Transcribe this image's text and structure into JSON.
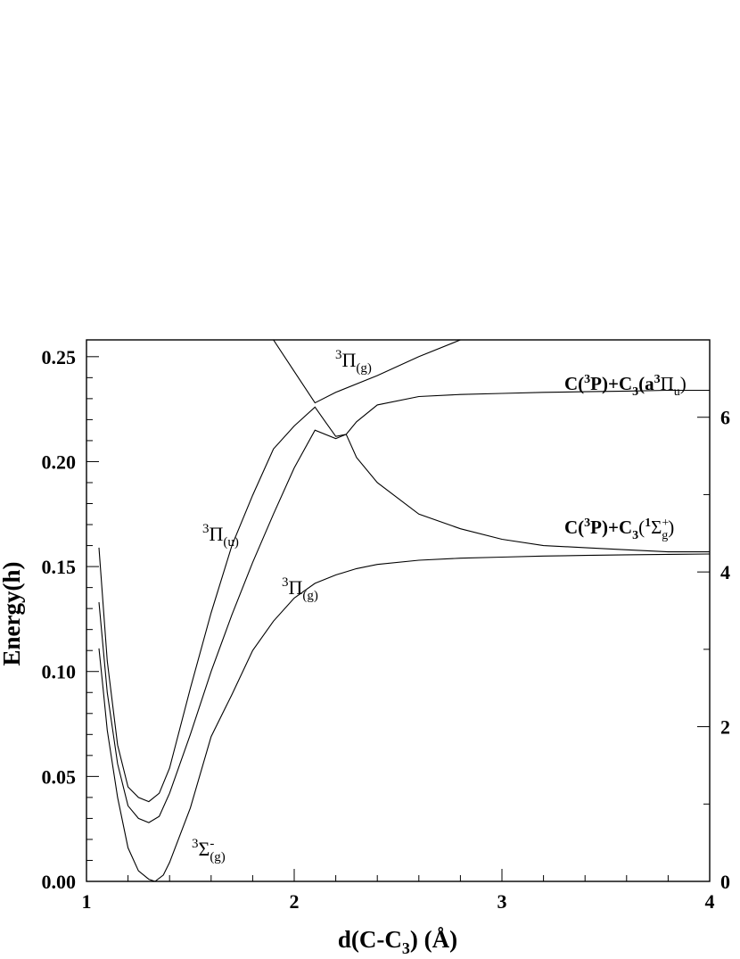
{
  "chart_data": {
    "type": "line",
    "xlabel_main": "d(C-C",
    "xlabel_sub": "3",
    "xlabel_unit": ") (Å)",
    "ylabel": "Energy(h)",
    "xlim": [
      1,
      4
    ],
    "ylim": [
      0,
      0.258
    ],
    "right_ylim": [
      0,
      7.0
    ],
    "x_ticks": [
      "1",
      "2",
      "3",
      "4"
    ],
    "y_ticks": [
      "0.00",
      "0.05",
      "0.10",
      "0.15",
      "0.20",
      "0.25"
    ],
    "right_ticks": [
      "0",
      "2",
      "4",
      "6"
    ],
    "x_tick_values": [
      1,
      2,
      3,
      4
    ],
    "y_tick_values": [
      0,
      0.05,
      0.1,
      0.15,
      0.2,
      0.25
    ],
    "right_tick_values": [
      0,
      2,
      4,
      6
    ],
    "grid": false,
    "series": [
      {
        "x": [
          1.06,
          1.08,
          1.1,
          1.15,
          1.2,
          1.25,
          1.3,
          1.33,
          1.37,
          1.4,
          1.5,
          1.6,
          1.7,
          1.8,
          1.9,
          2.0,
          2.1,
          2.2,
          2.3,
          2.4,
          2.6,
          2.8,
          3.0,
          3.2,
          3.4,
          3.6,
          3.8,
          4.0
        ],
        "y": [
          0.111,
          0.092,
          0.072,
          0.04,
          0.016,
          0.005,
          0.001,
          0.0,
          0.003,
          0.009,
          0.035,
          0.069,
          0.089,
          0.11,
          0.124,
          0.135,
          0.142,
          0.146,
          0.149,
          0.151,
          0.153,
          0.154,
          0.1545,
          0.155,
          0.1553,
          0.1556,
          0.1558,
          0.156
        ]
      },
      {
        "x": [
          1.06,
          1.1,
          1.15,
          1.2,
          1.25,
          1.3,
          1.35,
          1.4,
          1.5,
          1.6,
          1.7,
          1.8,
          1.9,
          2.0,
          2.1,
          2.2,
          2.25,
          2.3,
          2.4,
          2.6,
          2.8,
          3.0,
          3.2,
          3.4,
          3.6,
          3.8,
          4.0
        ],
        "y": [
          0.133,
          0.09,
          0.056,
          0.036,
          0.03,
          0.028,
          0.031,
          0.042,
          0.07,
          0.1,
          0.127,
          0.152,
          0.175,
          0.197,
          0.215,
          0.211,
          0.213,
          0.202,
          0.19,
          0.175,
          0.168,
          0.163,
          0.16,
          0.159,
          0.158,
          0.157,
          0.157
        ]
      },
      {
        "x": [
          1.06,
          1.1,
          1.15,
          1.2,
          1.25,
          1.3,
          1.35,
          1.4,
          1.5,
          1.6,
          1.7,
          1.8,
          1.9,
          2.0,
          2.1,
          2.15,
          2.2,
          2.25,
          2.3,
          2.4,
          2.6,
          2.8,
          3.0,
          3.2,
          3.4,
          3.6,
          3.8,
          4.0
        ],
        "y": [
          0.159,
          0.105,
          0.065,
          0.045,
          0.04,
          0.038,
          0.042,
          0.054,
          0.092,
          0.128,
          0.16,
          0.184,
          0.206,
          0.217,
          0.226,
          0.219,
          0.212,
          0.213,
          0.219,
          0.227,
          0.231,
          0.232,
          0.2325,
          0.233,
          0.2333,
          0.2336,
          0.234,
          0.234
        ]
      },
      {
        "x": [
          1.9,
          2.0,
          2.1,
          2.2,
          2.4,
          2.6,
          2.8
        ],
        "y": [
          0.258,
          0.243,
          0.228,
          0.233,
          0.241,
          0.25,
          0.258
        ]
      }
    ],
    "annotations": {
      "sigma_label": "³Σ⁻(g)",
      "pi_u_label": "³Π(u)",
      "pi_g_label": "³Π(g)",
      "pi_g_top_label": "³Π(g)",
      "asymptote_upper": "C(³P)+C₃(a³Πu)",
      "asymptote_lower": "C(³P)+C₃(¹Σ⁺g)"
    },
    "label_parts": {
      "sup3": "3",
      "sup1": "1",
      "sigma": "Σ",
      "pi": "Π",
      "minus": "-",
      "plus": "+",
      "sub_g": "(g)",
      "sub_u": "(u)",
      "g": "g",
      "u": "u",
      "c3p_pre": "C(",
      "c3p_mid": "P)+C",
      "c3_sub": "3",
      "open_a": "(a",
      "open_paren": "(",
      "close_paren": ")"
    }
  }
}
